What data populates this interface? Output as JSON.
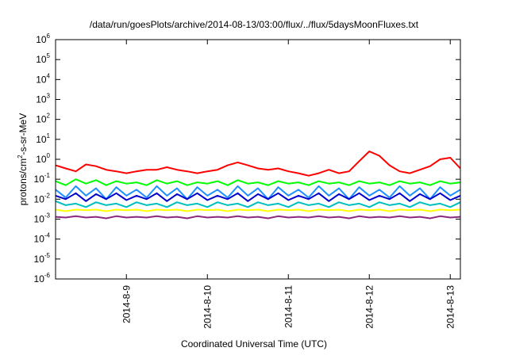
{
  "chart_data": {
    "type": "line",
    "title": "/data/run/goesPlots/archive/2014-08-13/03:00/flux/../flux/5daysMoonFluxes.txt",
    "xlabel": "Coordinated Universal Time (UTC)",
    "ylabel": "protons/cm²-s-sr-MeV",
    "ylabel_parts": {
      "base": "protons/cm",
      "sup": "2",
      "rest": "-s-sr-MeV"
    },
    "y_scale": "log",
    "ylim": [
      1e-06,
      1000000.0
    ],
    "y_ticks": [
      {
        "base": "10",
        "exp": "-6",
        "value": 1e-06
      },
      {
        "base": "10",
        "exp": "-5",
        "value": 1e-05
      },
      {
        "base": "10",
        "exp": "-4",
        "value": 0.0001
      },
      {
        "base": "10",
        "exp": "-3",
        "value": 0.001
      },
      {
        "base": "10",
        "exp": "-2",
        "value": 0.01
      },
      {
        "base": "10",
        "exp": "-1",
        "value": 0.1
      },
      {
        "base": "10",
        "exp": "0",
        "value": 1
      },
      {
        "base": "10",
        "exp": "1",
        "value": 10
      },
      {
        "base": "10",
        "exp": "2",
        "value": 100
      },
      {
        "base": "10",
        "exp": "3",
        "value": 1000
      },
      {
        "base": "10",
        "exp": "4",
        "value": 10000
      },
      {
        "base": "10",
        "exp": "5",
        "value": 100000
      },
      {
        "base": "10",
        "exp": "6",
        "value": 1000000
      }
    ],
    "xlim": [
      "2014-08-08T03:00",
      "2014-08-13T03:00"
    ],
    "x_ticks": [
      {
        "label": "2014-8-9",
        "value": "2014-08-09T00:00"
      },
      {
        "label": "2014-8-10",
        "value": "2014-08-10T00:00"
      },
      {
        "label": "2014-8-11",
        "value": "2014-08-11T00:00"
      },
      {
        "label": "2014-8-12",
        "value": "2014-08-12T00:00"
      },
      {
        "label": "2014-8-13",
        "value": "2014-08-13T00:00"
      }
    ],
    "grid": false,
    "legend": "none",
    "x_points": [
      "2014-08-08T03:00",
      "2014-08-08T06:00",
      "2014-08-08T09:00",
      "2014-08-08T12:00",
      "2014-08-08T15:00",
      "2014-08-08T18:00",
      "2014-08-08T21:00",
      "2014-08-09T00:00",
      "2014-08-09T03:00",
      "2014-08-09T06:00",
      "2014-08-09T09:00",
      "2014-08-09T12:00",
      "2014-08-09T15:00",
      "2014-08-09T18:00",
      "2014-08-09T21:00",
      "2014-08-10T00:00",
      "2014-08-10T03:00",
      "2014-08-10T06:00",
      "2014-08-10T09:00",
      "2014-08-10T12:00",
      "2014-08-10T15:00",
      "2014-08-10T18:00",
      "2014-08-10T21:00",
      "2014-08-11T00:00",
      "2014-08-11T03:00",
      "2014-08-11T06:00",
      "2014-08-11T09:00",
      "2014-08-11T12:00",
      "2014-08-11T15:00",
      "2014-08-11T18:00",
      "2014-08-11T21:00",
      "2014-08-12T00:00",
      "2014-08-12T03:00",
      "2014-08-12T06:00",
      "2014-08-12T09:00",
      "2014-08-12T12:00",
      "2014-08-12T15:00",
      "2014-08-12T18:00",
      "2014-08-12T21:00",
      "2014-08-13T00:00",
      "2014-08-13T03:00"
    ],
    "series": [
      {
        "color": "#ff0000",
        "values": [
          0.5,
          0.35,
          0.25,
          0.55,
          0.45,
          0.3,
          0.25,
          0.2,
          0.25,
          0.3,
          0.3,
          0.4,
          0.3,
          0.25,
          0.2,
          0.25,
          0.3,
          0.5,
          0.7,
          0.5,
          0.35,
          0.3,
          0.35,
          0.25,
          0.2,
          0.15,
          0.2,
          0.3,
          0.2,
          0.25,
          0.8,
          2.5,
          1.5,
          0.5,
          0.25,
          0.2,
          0.3,
          0.45,
          1.0,
          1.2,
          0.35
        ]
      },
      {
        "color": "#00ff00",
        "values": [
          0.08,
          0.05,
          0.1,
          0.06,
          0.09,
          0.05,
          0.08,
          0.06,
          0.07,
          0.05,
          0.09,
          0.06,
          0.08,
          0.05,
          0.07,
          0.06,
          0.08,
          0.05,
          0.09,
          0.06,
          0.07,
          0.05,
          0.08,
          0.06,
          0.07,
          0.05,
          0.08,
          0.06,
          0.07,
          0.05,
          0.08,
          0.06,
          0.07,
          0.05,
          0.08,
          0.06,
          0.07,
          0.05,
          0.08,
          0.06,
          0.07
        ]
      },
      {
        "color": "#1e90ff",
        "values": [
          0.03,
          0.012,
          0.045,
          0.015,
          0.035,
          0.01,
          0.04,
          0.015,
          0.03,
          0.012,
          0.045,
          0.015,
          0.035,
          0.01,
          0.04,
          0.015,
          0.03,
          0.012,
          0.045,
          0.015,
          0.035,
          0.01,
          0.04,
          0.015,
          0.03,
          0.012,
          0.045,
          0.015,
          0.035,
          0.01,
          0.04,
          0.015,
          0.03,
          0.012,
          0.045,
          0.015,
          0.035,
          0.01,
          0.04,
          0.015,
          0.03
        ]
      },
      {
        "color": "#0000cc",
        "values": [
          0.015,
          0.01,
          0.02,
          0.008,
          0.018,
          0.01,
          0.02,
          0.009,
          0.015,
          0.01,
          0.02,
          0.008,
          0.018,
          0.01,
          0.02,
          0.009,
          0.015,
          0.01,
          0.02,
          0.008,
          0.018,
          0.01,
          0.02,
          0.009,
          0.015,
          0.01,
          0.02,
          0.008,
          0.018,
          0.01,
          0.02,
          0.009,
          0.015,
          0.01,
          0.02,
          0.008,
          0.018,
          0.01,
          0.02,
          0.009,
          0.015
        ]
      },
      {
        "color": "#00bfbf",
        "values": [
          0.008,
          0.005,
          0.006,
          0.004,
          0.007,
          0.005,
          0.006,
          0.004,
          0.007,
          0.005,
          0.006,
          0.004,
          0.007,
          0.005,
          0.006,
          0.004,
          0.007,
          0.005,
          0.006,
          0.004,
          0.007,
          0.005,
          0.006,
          0.004,
          0.007,
          0.005,
          0.006,
          0.004,
          0.007,
          0.005,
          0.006,
          0.004,
          0.007,
          0.005,
          0.006,
          0.004,
          0.007,
          0.005,
          0.006,
          0.004,
          0.007
        ]
      },
      {
        "color": "#ffff00",
        "values": [
          0.003,
          0.0025,
          0.003,
          0.0028,
          0.003,
          0.0025,
          0.003,
          0.0028,
          0.003,
          0.0025,
          0.003,
          0.0028,
          0.003,
          0.0025,
          0.003,
          0.0028,
          0.003,
          0.0025,
          0.003,
          0.0028,
          0.003,
          0.0025,
          0.003,
          0.0028,
          0.003,
          0.0025,
          0.003,
          0.0028,
          0.003,
          0.0025,
          0.003,
          0.0028,
          0.003,
          0.0025,
          0.003,
          0.0028,
          0.003,
          0.0025,
          0.003,
          0.0028,
          0.003
        ]
      },
      {
        "color": "#8b2a7f",
        "values": [
          0.0013,
          0.0012,
          0.0014,
          0.0012,
          0.0013,
          0.0011,
          0.0014,
          0.0012,
          0.0013,
          0.0012,
          0.0014,
          0.0012,
          0.0013,
          0.0011,
          0.0014,
          0.0012,
          0.0013,
          0.0012,
          0.0014,
          0.0012,
          0.0013,
          0.0011,
          0.0014,
          0.0012,
          0.0013,
          0.0012,
          0.0014,
          0.0012,
          0.0013,
          0.0011,
          0.0014,
          0.0012,
          0.0013,
          0.0012,
          0.0014,
          0.0012,
          0.0013,
          0.0011,
          0.0014,
          0.0012,
          0.0013
        ]
      }
    ]
  }
}
